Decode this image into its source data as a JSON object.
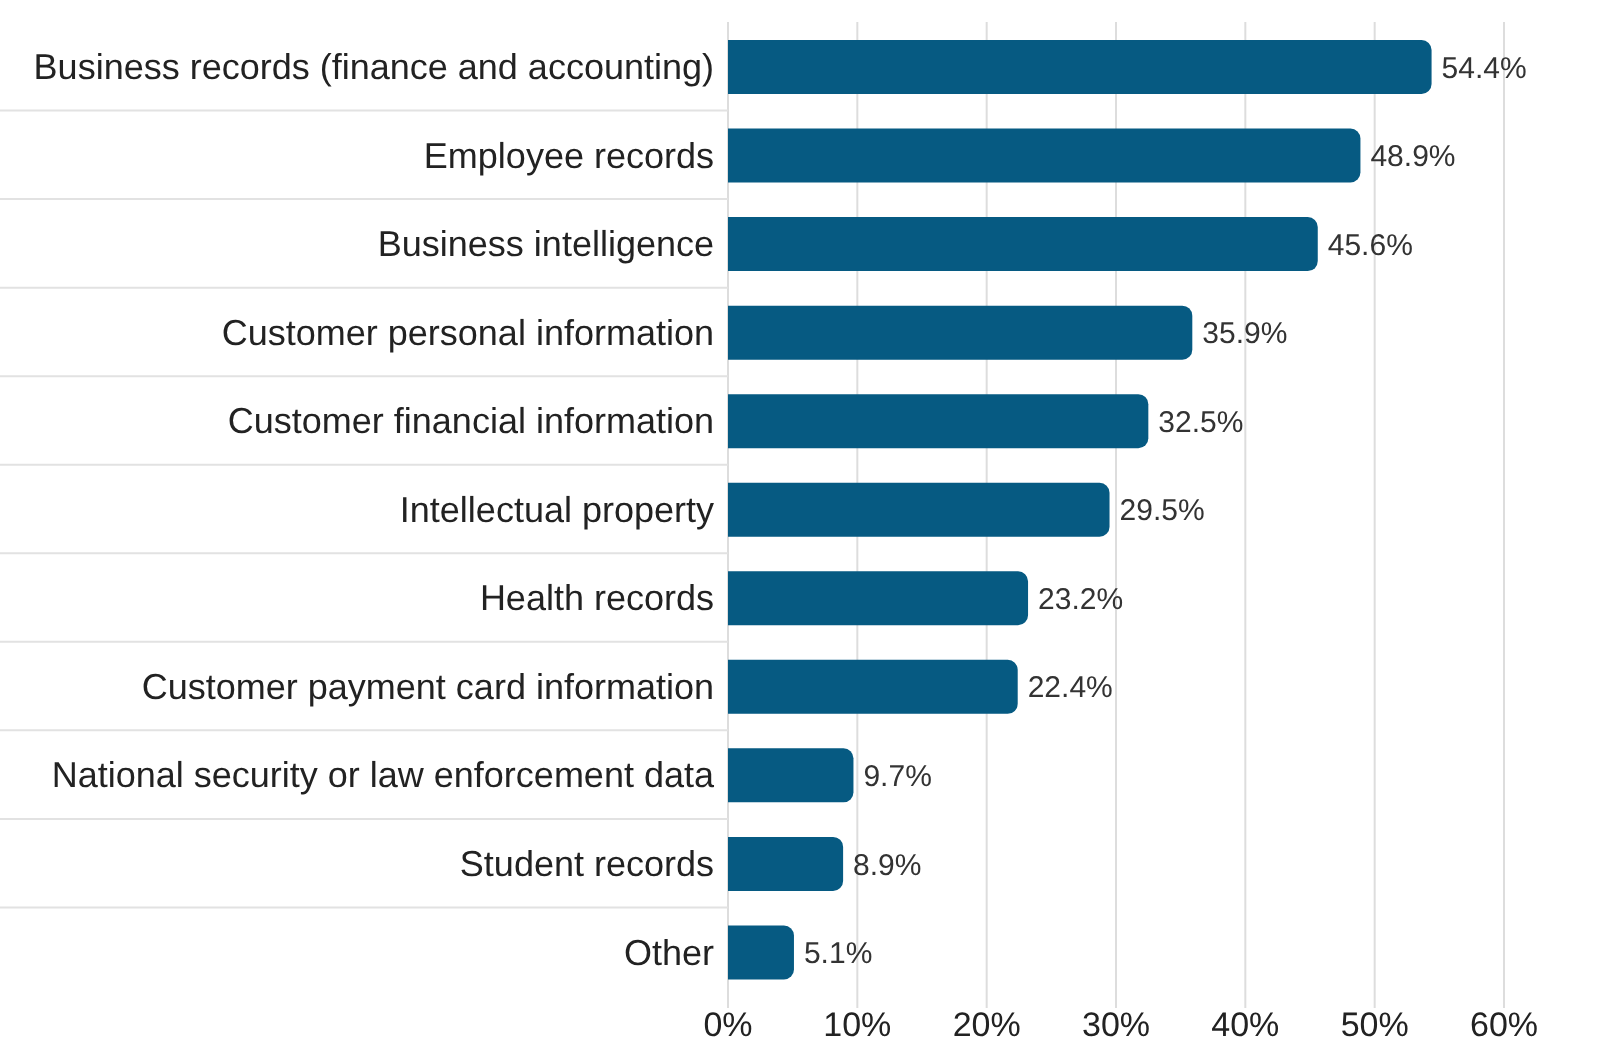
{
  "chart_data": {
    "type": "bar",
    "orientation": "horizontal",
    "categories": [
      "Business records (finance and accounting)",
      "Employee records",
      "Business intelligence",
      "Customer personal information",
      "Customer financial information",
      "Intellectual property",
      "Health records",
      "Customer payment card information",
      "National security or law enforcement data",
      "Student records",
      "Other"
    ],
    "values": [
      54.4,
      48.9,
      45.6,
      35.9,
      32.5,
      29.5,
      23.2,
      22.4,
      9.7,
      8.9,
      5.1
    ],
    "value_labels": [
      "54.4%",
      "48.9%",
      "45.6%",
      "35.9%",
      "32.5%",
      "29.5%",
      "23.2%",
      "22.4%",
      "9.7%",
      "8.9%",
      "5.1%"
    ],
    "color": "#065a82",
    "xlim": [
      0,
      60
    ],
    "xticks": [
      {
        "value": 0,
        "label": "0%"
      },
      {
        "value": 10,
        "label": "10%"
      },
      {
        "value": 20,
        "label": "20%"
      },
      {
        "value": 30,
        "label": "30%"
      },
      {
        "value": 40,
        "label": "40%"
      },
      {
        "value": 50,
        "label": "50%"
      },
      {
        "value": 60,
        "label": "60%"
      }
    ],
    "grid": "x"
  }
}
